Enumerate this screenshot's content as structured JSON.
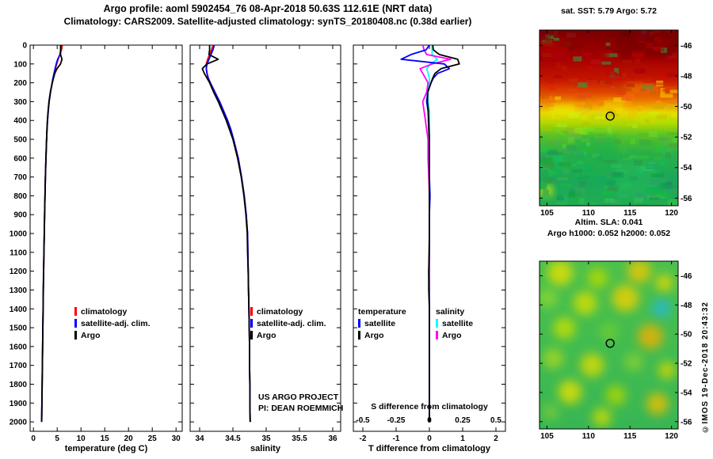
{
  "figure": {
    "title_line1": "Argo profile: aoml 5902454_76 08-Apr-2018 50.63S 112.61E (NRT data)",
    "title_line2": "Climatology: CARS2009. Satellite-adjusted climatology: synTS_20180408.nc (0.38d earlier)",
    "copyright": "©IMOS 19-Dec-2018 20:43:32"
  },
  "annotations": {
    "project_line1": "US ARGO PROJECT",
    "project_line2": "PI: DEAN ROEMMICH",
    "s_diff_label": "S difference from climatology"
  },
  "legends": {
    "profile": [
      {
        "label": "climatology",
        "color": "#ff0000"
      },
      {
        "label": "satellite-adj. clim.",
        "color": "#0000ff"
      },
      {
        "label": "Argo",
        "color": "#000000"
      }
    ],
    "difference": {
      "temperature_header": "temperature",
      "salinity_header": "salinity",
      "temperature_items": [
        {
          "label": "satellite",
          "color": "#0000ff"
        },
        {
          "label": "Argo",
          "color": "#000000"
        }
      ],
      "salinity_items": [
        {
          "label": "satellite",
          "color": "#00ffff"
        },
        {
          "label": "Argo",
          "color": "#ff00ff"
        }
      ]
    }
  },
  "maps": {
    "sst": {
      "title": "sat. SST: 5.79 Argo: 5.72",
      "lon_ticks": [
        105,
        110,
        115,
        120
      ],
      "lat_ticks": [
        -46,
        -48,
        -50,
        -52,
        -54,
        -56
      ],
      "lon_range": [
        104.1,
        120.8
      ],
      "lat_range": [
        -45.0,
        -56.5
      ],
      "marker": {
        "lon": 112.61,
        "lat": -50.63
      },
      "gradient": [
        [
          0,
          "#7a0000"
        ],
        [
          0.16,
          "#a50000"
        ],
        [
          0.28,
          "#c41400"
        ],
        [
          0.36,
          "#e04a00"
        ],
        [
          0.42,
          "#f09000"
        ],
        [
          0.47,
          "#ead800"
        ],
        [
          0.53,
          "#b0d800"
        ],
        [
          0.6,
          "#58c228"
        ],
        [
          0.7,
          "#28b048"
        ],
        [
          0.85,
          "#1aa85a"
        ],
        [
          1,
          "#22ac50"
        ]
      ],
      "patches": [
        [
          0.55,
          0.0,
          0.45,
          0.16,
          "#700000"
        ],
        [
          0.0,
          0.05,
          0.2,
          0.12,
          "#b40000"
        ],
        [
          0.62,
          0.3,
          0.25,
          0.07,
          "#f08000"
        ],
        [
          0.08,
          0.42,
          0.18,
          0.06,
          "#f0f000"
        ],
        [
          0.45,
          0.4,
          0.18,
          0.06,
          "#f0d800"
        ],
        [
          0.7,
          0.47,
          0.25,
          0.06,
          "#c8e000"
        ],
        [
          0.25,
          0.6,
          0.3,
          0.25,
          "#1cb04c"
        ],
        [
          0.55,
          0.75,
          0.3,
          0.2,
          "#28b858"
        ],
        [
          0.0,
          0.88,
          0.1,
          0.07,
          "#e8e800"
        ]
      ]
    },
    "sla": {
      "title_line1": "Altim. SLA: 0.041",
      "title_line2": "Argo h1000: 0.052 h2000: 0.052",
      "lon_ticks": [
        105,
        110,
        115,
        120
      ],
      "lat_ticks": [
        -46,
        -48,
        -50,
        -52,
        -54,
        -56
      ],
      "lon_range": [
        104.1,
        120.8
      ],
      "lat_range": [
        -45.0,
        -56.5
      ],
      "marker": {
        "lon": 112.61,
        "lat": -50.63
      },
      "base_gradient": [
        [
          0,
          "#4cc04c"
        ],
        [
          0.5,
          "#42bc50"
        ],
        [
          1,
          "#38b654"
        ]
      ],
      "blobs": [
        [
          0.15,
          0.07,
          16,
          "#e8e000"
        ],
        [
          0.42,
          0.1,
          13,
          "#b8dc00"
        ],
        [
          0.72,
          0.06,
          15,
          "#f0c800"
        ],
        [
          0.9,
          0.13,
          11,
          "#e8d800"
        ],
        [
          0.06,
          0.22,
          12,
          "#90d830"
        ],
        [
          0.33,
          0.25,
          15,
          "#d8e000"
        ],
        [
          0.62,
          0.22,
          17,
          "#f0d000"
        ],
        [
          0.88,
          0.28,
          12,
          "#28b8d8"
        ],
        [
          0.18,
          0.4,
          14,
          "#c8e000"
        ],
        [
          0.5,
          0.42,
          12,
          "#70cc30"
        ],
        [
          0.8,
          0.45,
          16,
          "#f0b000"
        ],
        [
          0.1,
          0.58,
          13,
          "#a8d820"
        ],
        [
          0.38,
          0.62,
          15,
          "#e0dc00"
        ],
        [
          0.68,
          0.6,
          12,
          "#88d030"
        ],
        [
          0.92,
          0.65,
          11,
          "#d8d800"
        ],
        [
          0.22,
          0.78,
          15,
          "#e8e000"
        ],
        [
          0.55,
          0.8,
          13,
          "#b0d800"
        ],
        [
          0.85,
          0.85,
          14,
          "#f0c000"
        ],
        [
          0.08,
          0.9,
          11,
          "#78cc38"
        ],
        [
          0.45,
          0.93,
          12,
          "#d0dc00"
        ]
      ]
    }
  },
  "chart_data": {
    "type": "line",
    "orientation": "depth-profile",
    "ylim": [
      0,
      2050
    ],
    "depth_max": 2050,
    "depth_ticks": [
      0,
      100,
      200,
      300,
      400,
      500,
      600,
      700,
      800,
      900,
      1000,
      1100,
      1200,
      1300,
      1400,
      1500,
      1600,
      1700,
      1800,
      1900,
      2000
    ],
    "depth_m": [
      0,
      25,
      50,
      75,
      100,
      125,
      150,
      175,
      200,
      250,
      300,
      350,
      400,
      450,
      500,
      600,
      700,
      800,
      900,
      1000,
      1100,
      1200,
      1300,
      1400,
      1500,
      1600,
      1700,
      1800,
      1900,
      2000
    ],
    "panels": [
      {
        "id": "temperature",
        "xlabel": "temperature (deg C)",
        "xlim": [
          -0.7,
          31.3
        ],
        "xticks": [
          0,
          5,
          10,
          15,
          20,
          25,
          30
        ],
        "series": [
          {
            "name": "climatology",
            "color": "#ff0000",
            "values": [
              6.1,
              5.9,
              5.55,
              5.2,
              4.9,
              4.62,
              4.38,
              4.15,
              3.95,
              3.6,
              3.32,
              3.12,
              2.97,
              2.86,
              2.77,
              2.63,
              2.52,
              2.43,
              2.35,
              2.28,
              2.21,
              2.15,
              2.09,
              2.03,
              1.98,
              1.93,
              1.88,
              1.83,
              1.78,
              1.74
            ]
          },
          {
            "name": "satellite-adj. clim.",
            "color": "#0000ff",
            "values": [
              5.79,
              5.74,
              5.6,
              5.1,
              4.8,
              4.55,
              4.33,
              4.12,
              3.93,
              3.58,
              3.3,
              3.11,
              2.96,
              2.85,
              2.77,
              2.63,
              2.52,
              2.43,
              2.35,
              2.28,
              2.21,
              2.15,
              2.09,
              2.03,
              1.98,
              1.93,
              1.88,
              1.83,
              1.78,
              1.74
            ]
          },
          {
            "name": "Argo",
            "color": "#000000",
            "values": [
              5.72,
              5.71,
              5.7,
              6.0,
              5.7,
              4.95,
              4.5,
              4.22,
              3.98,
              3.55,
              3.26,
              3.09,
              2.94,
              2.84,
              2.77,
              2.63,
              2.52,
              2.43,
              2.35,
              2.28,
              2.2,
              2.13,
              2.07,
              2.03,
              1.98,
              1.93,
              1.88,
              1.83,
              1.78,
              1.74
            ]
          }
        ]
      },
      {
        "id": "salinity",
        "xlabel": "salinity",
        "xlim": [
          33.857,
          36.119
        ],
        "xticks": [
          34,
          34.5,
          35,
          35.5,
          36
        ],
        "series": [
          {
            "name": "climatology",
            "color": "#ff0000",
            "values": [
              34.2,
              34.18,
              34.15,
              34.12,
              34.1,
              34.1,
              34.11,
              34.13,
              34.16,
              34.23,
              34.3,
              34.36,
              34.42,
              34.47,
              34.51,
              34.58,
              34.63,
              34.67,
              34.7,
              34.72,
              34.725,
              34.73,
              34.735,
              34.74,
              34.745,
              34.75,
              34.75,
              34.755,
              34.755,
              34.76
            ]
          },
          {
            "name": "satellite-adj. clim.",
            "color": "#0000ff",
            "values": [
              34.22,
              34.2,
              34.17,
              34.14,
              34.11,
              34.1,
              34.11,
              34.13,
              34.16,
              34.23,
              34.3,
              34.36,
              34.42,
              34.47,
              34.51,
              34.58,
              34.63,
              34.67,
              34.7,
              34.72,
              34.725,
              34.73,
              34.735,
              34.74,
              34.745,
              34.75,
              34.75,
              34.755,
              34.755,
              34.76
            ]
          },
          {
            "name": "Argo",
            "color": "#000000",
            "values": [
              34.15,
              34.15,
              34.14,
              34.28,
              34.11,
              34.04,
              34.07,
              34.11,
              34.15,
              34.21,
              34.28,
              34.34,
              34.4,
              34.45,
              34.5,
              34.57,
              34.625,
              34.665,
              34.695,
              34.715,
              34.72,
              34.73,
              34.735,
              34.74,
              34.745,
              34.75,
              34.75,
              34.755,
              34.755,
              34.76
            ]
          }
        ]
      },
      {
        "id": "difference",
        "xlabel": "T difference from climatology",
        "xlim": [
          -2.2857,
          2.2857
        ],
        "xticks": [
          -2,
          -1,
          0,
          1,
          2
        ],
        "inner_ticks": [
          -0.5,
          -0.25,
          0,
          0.25,
          0.5
        ],
        "inner_scale": 4,
        "series": [
          {
            "name": "salinity satellite",
            "color": "#00ffff",
            "scale": 4,
            "values": [
              0.02,
              0.02,
              0.02,
              0.06,
              0.01,
              -0.02,
              -0.01,
              0,
              0,
              -0.01,
              -0.01,
              0,
              0,
              0,
              0,
              0,
              0,
              0,
              0,
              0,
              0,
              0,
              0,
              0,
              0,
              0,
              0,
              0,
              0,
              0
            ]
          },
          {
            "name": "salinity Argo",
            "color": "#ff00ff",
            "scale": 4,
            "values": [
              -0.05,
              -0.04,
              -0.02,
              0.16,
              0.02,
              -0.07,
              -0.05,
              -0.03,
              -0.01,
              -0.02,
              -0.05,
              -0.04,
              -0.03,
              -0.02,
              -0.01,
              -0.01,
              -0.005,
              0,
              0,
              0,
              0,
              0,
              0,
              0,
              0,
              0,
              0,
              0,
              0,
              0
            ]
          },
          {
            "name": "temperature satellite",
            "color": "#0000ff",
            "scale": 1,
            "values": [
              0,
              -0.1,
              -0.55,
              -0.85,
              0.45,
              0.6,
              0.25,
              0.12,
              0.05,
              -0.05,
              -0.08,
              -0.04,
              -0.02,
              -0.01,
              0,
              0,
              0,
              0.02,
              0,
              0,
              0,
              -0.02,
              -0.01,
              0,
              0,
              0,
              0,
              0,
              0,
              0
            ]
          },
          {
            "name": "temperature Argo",
            "color": "#000000",
            "scale": 1,
            "values": [
              0.1,
              0.12,
              0.3,
              0.85,
              0.9,
              0.35,
              0.17,
              0.1,
              0.05,
              -0.05,
              -0.06,
              -0.03,
              -0.03,
              -0.02,
              0,
              0,
              0,
              0,
              0,
              0,
              -0.01,
              -0.02,
              -0.02,
              0,
              0,
              0,
              0,
              0,
              0,
              0
            ]
          }
        ]
      }
    ]
  }
}
